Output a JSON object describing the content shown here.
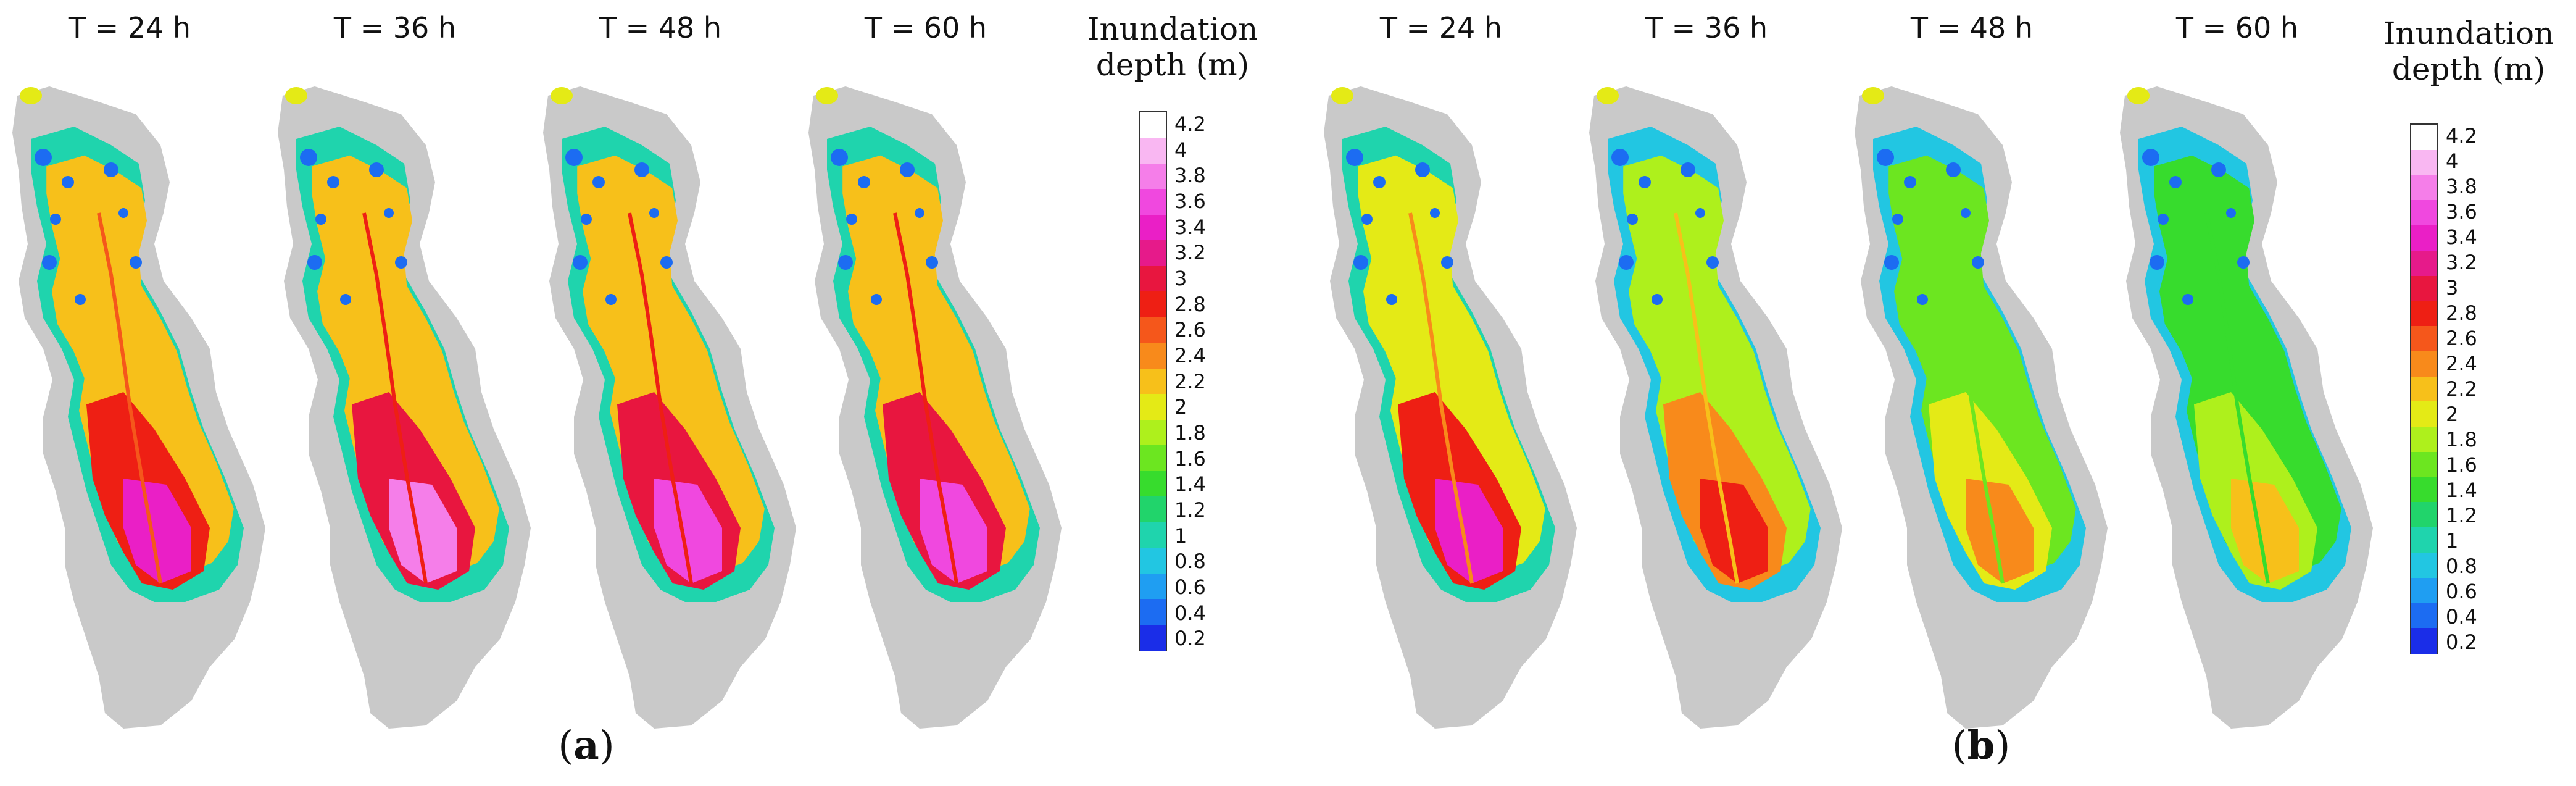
{
  "groups": [
    {
      "id": "a",
      "caption_open": "(",
      "caption_letter": "a",
      "caption_close": ")",
      "panels": [
        {
          "label": "T = 24 h",
          "intensity": 0.85
        },
        {
          "label": "T = 36 h",
          "intensity": 1.0
        },
        {
          "label": "T = 48 h",
          "intensity": 0.95
        },
        {
          "label": "T = 60 h",
          "intensity": 0.92
        }
      ]
    },
    {
      "id": "b",
      "caption_open": "(",
      "caption_letter": "b",
      "caption_close": ")",
      "panels": [
        {
          "label": "T = 24 h",
          "intensity": 0.8
        },
        {
          "label": "T = 36 h",
          "intensity": 0.6
        },
        {
          "label": "T = 48 h",
          "intensity": 0.35
        },
        {
          "label": "T = 60 h",
          "intensity": 0.28
        }
      ]
    }
  ],
  "legend": {
    "title_line1": "Inundation",
    "title_line2": "depth (m)",
    "ticks": [
      "4.2",
      "4",
      "3.8",
      "3.6",
      "3.4",
      "3.2",
      "3",
      "2.8",
      "2.6",
      "2.4",
      "2.2",
      "2",
      "1.8",
      "1.6",
      "1.4",
      "1.2",
      "1",
      "0.8",
      "0.6",
      "0.4",
      "0.2"
    ],
    "colors": [
      "#ffffff",
      "#f9b7f2",
      "#f57ee9",
      "#f048df",
      "#ea1fc6",
      "#e61a8a",
      "#e8163f",
      "#ee1f14",
      "#f5571b",
      "#f88a1b",
      "#f7c01a",
      "#e4ea16",
      "#aef01c",
      "#6ce620",
      "#37dc2d",
      "#21d46b",
      "#1fd4ad",
      "#22c6e2",
      "#1f9ef2",
      "#1c6cf2",
      "#1a2de8"
    ]
  },
  "colors": {
    "land": "#c9c9c9"
  }
}
